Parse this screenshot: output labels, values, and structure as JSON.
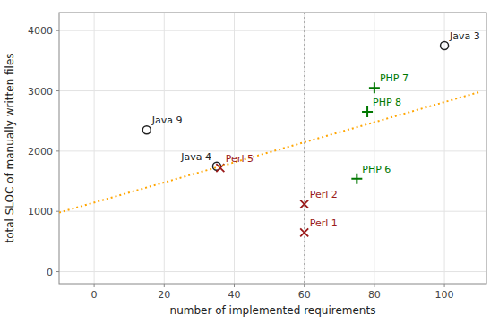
{
  "chart_data": {
    "type": "scatter",
    "xlabel": "number of implemented requirements",
    "ylabel": "total SLOC of manually written files",
    "xlim": [
      -10,
      112
    ],
    "ylim": [
      -200,
      4300
    ],
    "xticks": [
      0,
      20,
      40,
      60,
      80,
      100
    ],
    "yticks": [
      0,
      1000,
      2000,
      3000,
      4000
    ],
    "grid": true,
    "series": [
      {
        "type": "scatter",
        "marker": "circle",
        "color": "#222222",
        "x": [
          15,
          35,
          100
        ],
        "values": [
          2350,
          1750,
          3750
        ],
        "labels": [
          "Java 9",
          "Java 4",
          "Java 3"
        ]
      },
      {
        "type": "scatter",
        "marker": "x",
        "color": "#9b1b1b",
        "x": [
          36,
          60,
          60
        ],
        "values": [
          1720,
          1120,
          650
        ],
        "labels": [
          "Perl 5",
          "Perl 2",
          "Perl 1"
        ]
      },
      {
        "type": "scatter",
        "marker": "plus",
        "color": "#007700",
        "x": [
          80,
          78,
          75
        ],
        "values": [
          3050,
          2650,
          1540
        ],
        "labels": [
          "PHP 7",
          "PHP 8",
          "PHP 6"
        ]
      },
      {
        "type": "line",
        "line_style": "dotted",
        "color": "#FFA500",
        "x": [
          -10,
          110
        ],
        "values": [
          980,
          2980
        ]
      }
    ],
    "annotations": [
      {
        "type": "vline",
        "x": 60,
        "color": "#aaaaaa",
        "line_style": "dotted"
      }
    ]
  }
}
